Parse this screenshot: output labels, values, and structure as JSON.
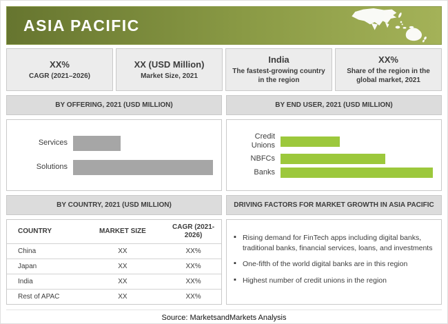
{
  "banner": {
    "title": "ASIA PACIFIC"
  },
  "stats": [
    {
      "value": "XX%",
      "label": "CAGR (2021–2026)"
    },
    {
      "value": "XX (USD Million)",
      "label": "Market Size, 2021"
    },
    {
      "value": "India",
      "label": "The fastest-growing country in the region"
    },
    {
      "value": "XX%",
      "label": "Share of the region in the global market, 2021"
    }
  ],
  "sections": {
    "offering_header": "BY OFFERING, 2021 (USD MILLION)",
    "end_user_header": "BY END USER, 2021 (USD MILLION)",
    "country_header": "BY COUNTRY, 2021 (USD MILLION)",
    "driving_header": "DRIVING FACTORS FOR MARKET GROWTH IN ASIA PACIFIC"
  },
  "chart_data": [
    {
      "type": "bar",
      "orientation": "horizontal",
      "title": "BY OFFERING, 2021 (USD MILLION)",
      "categories": [
        "Services",
        "Solutions"
      ],
      "values": [
        34,
        100
      ],
      "values_note": "actual figures masked as XX in source; values are bar lengths as % of longest bar",
      "bar_color": "#a6a6a6",
      "grid": false,
      "legend": false
    },
    {
      "type": "bar",
      "orientation": "horizontal",
      "title": "BY END USER, 2021 (USD MILLION)",
      "categories": [
        "Credit Unions",
        "NBFCs",
        "Banks"
      ],
      "values": [
        39,
        69,
        100
      ],
      "values_note": "actual figures masked as XX in source; values are bar lengths as % of longest bar",
      "bar_color": "#9cc83c",
      "grid": false,
      "legend": false
    }
  ],
  "country_table": {
    "headers": [
      "COUNTRY",
      "MARKET SIZE",
      "CAGR (2021-2026)"
    ],
    "rows": [
      [
        "China",
        "XX",
        "XX%"
      ],
      [
        "Japan",
        "XX",
        "XX%"
      ],
      [
        "India",
        "XX",
        "XX%"
      ],
      [
        "Rest of APAC",
        "XX",
        "XX%"
      ]
    ]
  },
  "driving_factors": [
    "Rising demand for FinTech apps including digital banks, traditional banks, financial services, loans, and investments",
    "One-fifth of the world digital banks are in this region",
    "Highest number of credit unions in the region"
  ],
  "footer": {
    "source": "Source: MarketsandMarkets Analysis"
  },
  "colors": {
    "banner_gradient_start": "#66752f",
    "banner_gradient_end": "#a4b258",
    "bar_gray": "#a6a6a6",
    "bar_green": "#9cc83c",
    "panel_gray": "#ececec",
    "header_bar_gray": "#dcdcdc"
  }
}
